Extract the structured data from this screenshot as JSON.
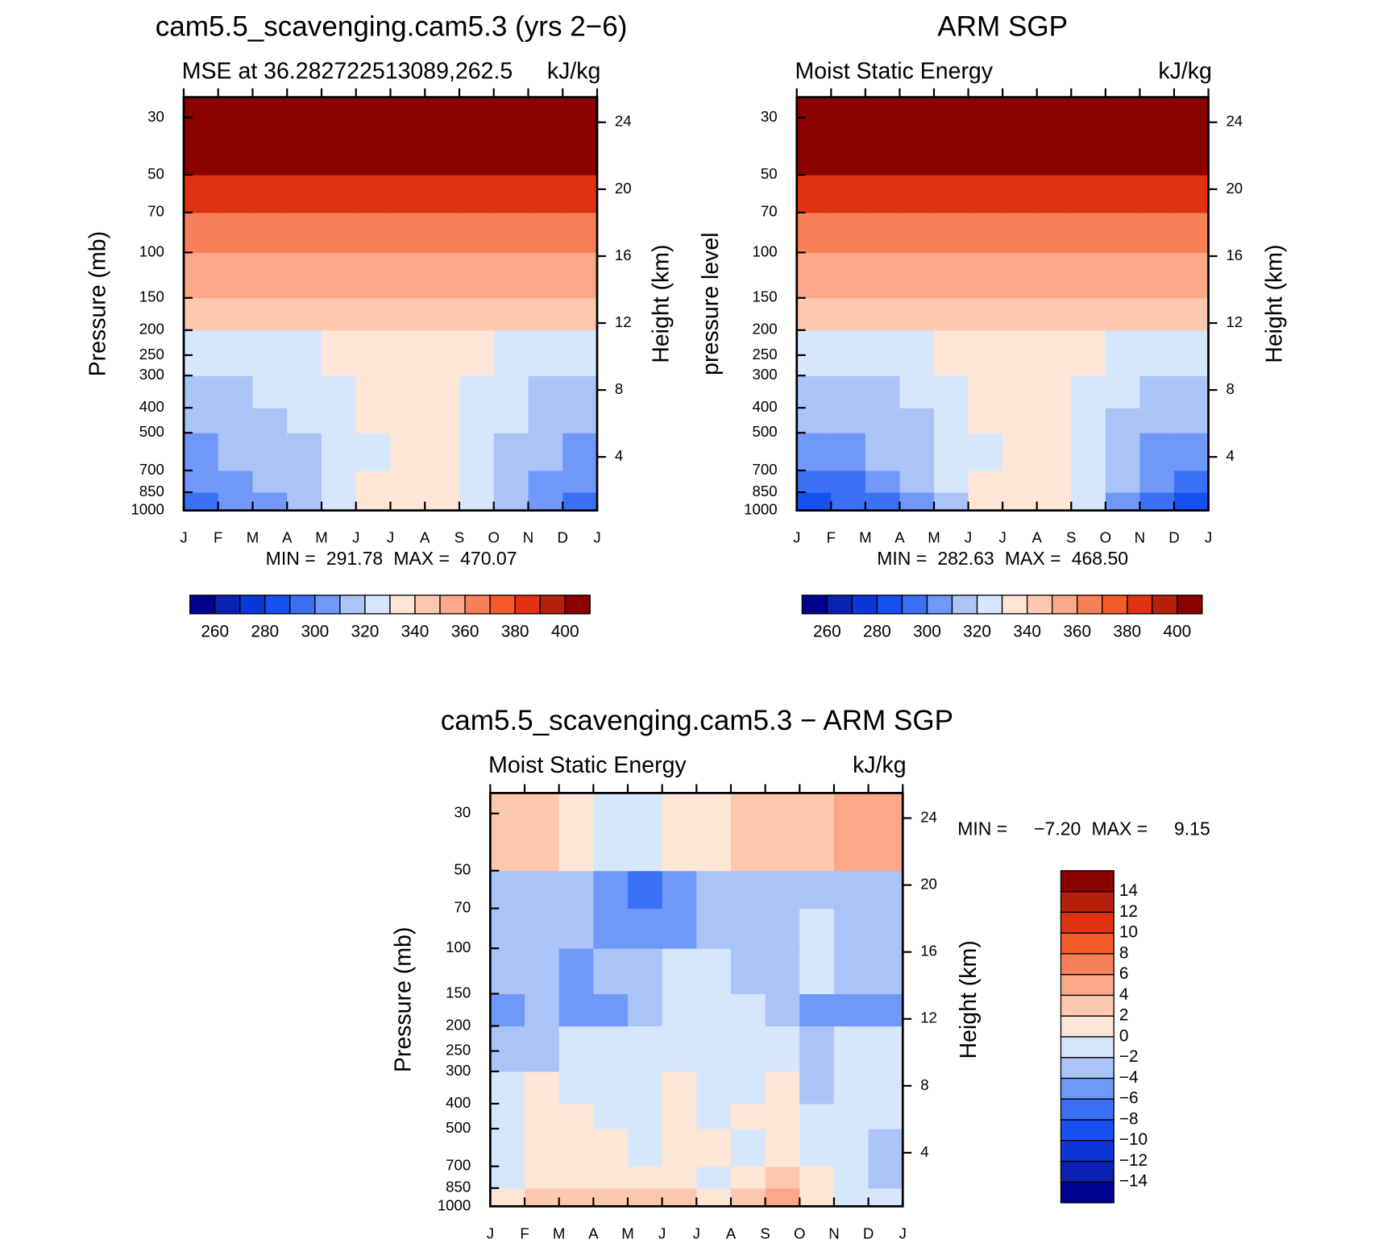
{
  "chart_data": [
    {
      "type": "contour",
      "title": "cam5.5_scavenging.cam5.3 (yrs 2−6)",
      "subtitle_left": "MSE at 36.282722513089,262.5",
      "subtitle_right": "kJ/kg",
      "ylabel": "Pressure (mb)",
      "y2label": "Height (km)",
      "categories": [
        "J",
        "F",
        "M",
        "A",
        "M",
        "J",
        "J",
        "A",
        "S",
        "O",
        "N",
        "D",
        "J"
      ],
      "ylim": [
        1000,
        25
      ],
      "log_y": true,
      "yticks": [
        30,
        50,
        70,
        100,
        150,
        200,
        250,
        300,
        400,
        500,
        700,
        850,
        1000
      ],
      "y2lim": [
        0.8,
        25.5
      ],
      "y2ticks": [
        4,
        8,
        12,
        16,
        20,
        24
      ],
      "pressure_bounds": [
        1000,
        850,
        700,
        500,
        400,
        300,
        200,
        150,
        100,
        70,
        50,
        25
      ],
      "z": [
        [
          296,
          300,
          306,
          315,
          323,
          331,
          336,
          333,
          324,
          312,
          302,
          296
        ],
        [
          302,
          305,
          310,
          316,
          324,
          330,
          334,
          332,
          325,
          314,
          306,
          302
        ],
        [
          308,
          310,
          314,
          318,
          325,
          329,
          331,
          330,
          325,
          316,
          310,
          307
        ],
        [
          314,
          315,
          317,
          320,
          326,
          331,
          332,
          331,
          327,
          320,
          315,
          313
        ],
        [
          318,
          319,
          320,
          323,
          328,
          334,
          335,
          334,
          329,
          323,
          319,
          318
        ],
        [
          326,
          326,
          327,
          329,
          333,
          335,
          336,
          336,
          333,
          329,
          327,
          326
        ],
        [
          342,
          342,
          342,
          342,
          343,
          345,
          346,
          345,
          344,
          342,
          342,
          342
        ],
        [
          352,
          352,
          352,
          352,
          352,
          353,
          353,
          353,
          353,
          352,
          352,
          352
        ],
        [
          366,
          366,
          365,
          365,
          365,
          365,
          365,
          365,
          365,
          365,
          366,
          366
        ],
        [
          385,
          385,
          384,
          384,
          383,
          383,
          383,
          383,
          383,
          384,
          384,
          385
        ],
        [
          430,
          430,
          430,
          430,
          430,
          430,
          430,
          430,
          430,
          430,
          430,
          430
        ]
      ],
      "levels": [
        260,
        270,
        280,
        290,
        300,
        310,
        320,
        330,
        340,
        350,
        360,
        370,
        380,
        390,
        400
      ],
      "colors": [
        "#000090",
        "#0b22b0",
        "#0b36d8",
        "#1650f0",
        "#3a70f5",
        "#7098f8",
        "#aac4f8",
        "#d7e7fb",
        "#fde6d6",
        "#fcc8b0",
        "#fba888",
        "#f88058",
        "#f55a2a",
        "#e03212",
        "#b5200a",
        "#8b0000"
      ],
      "colorbar_ticks": [
        260,
        280,
        300,
        320,
        340,
        360,
        380,
        400
      ],
      "colorbar": "horizontal",
      "min_text": "MIN =",
      "min": 291.78,
      "max_text": "MAX =",
      "max": 470.07
    },
    {
      "type": "contour",
      "title": "ARM SGP",
      "subtitle_left": "Moist Static Energy",
      "subtitle_right": "kJ/kg",
      "ylabel": "pressure level",
      "y2label": "Height (km)",
      "categories": [
        "J",
        "F",
        "M",
        "A",
        "M",
        "J",
        "J",
        "A",
        "S",
        "O",
        "N",
        "D",
        "J"
      ],
      "ylim": [
        1000,
        25
      ],
      "log_y": true,
      "yticks": [
        30,
        50,
        70,
        100,
        150,
        200,
        250,
        300,
        400,
        500,
        700,
        850,
        1000
      ],
      "y2lim": [
        0.8,
        25.5
      ],
      "y2ticks": [
        4,
        8,
        12,
        16,
        20,
        24
      ],
      "pressure_bounds": [
        1000,
        850,
        700,
        500,
        400,
        300,
        200,
        150,
        100,
        70,
        50,
        25
      ],
      "z": [
        [
          288,
          292,
          298,
          308,
          318,
          330,
          337,
          334,
          320,
          305,
          292,
          288
        ],
        [
          296,
          299,
          304,
          313,
          321,
          330,
          333,
          331,
          322,
          310,
          300,
          296
        ],
        [
          304,
          306,
          311,
          316,
          324,
          329,
          331,
          330,
          325,
          315,
          308,
          305
        ],
        [
          312,
          313,
          315,
          319,
          325,
          330,
          332,
          331,
          327,
          319,
          314,
          312
        ],
        [
          317,
          317,
          319,
          322,
          328,
          333,
          335,
          334,
          329,
          322,
          318,
          317
        ],
        [
          325,
          325,
          326,
          328,
          332,
          335,
          337,
          336,
          333,
          328,
          326,
          325
        ],
        [
          341,
          341,
          341,
          342,
          343,
          344,
          345,
          345,
          343,
          342,
          341,
          341
        ],
        [
          353,
          353,
          353,
          353,
          353,
          353,
          353,
          353,
          353,
          353,
          353,
          353
        ],
        [
          368,
          368,
          368,
          368,
          367,
          367,
          367,
          367,
          367,
          368,
          368,
          368
        ],
        [
          385,
          385,
          385,
          384,
          383,
          382,
          382,
          382,
          383,
          384,
          385,
          385
        ],
        [
          430,
          430,
          430,
          430,
          430,
          430,
          430,
          430,
          430,
          430,
          430,
          430
        ]
      ],
      "levels": [
        260,
        270,
        280,
        290,
        300,
        310,
        320,
        330,
        340,
        350,
        360,
        370,
        380,
        390,
        400
      ],
      "colors": [
        "#000090",
        "#0b22b0",
        "#0b36d8",
        "#1650f0",
        "#3a70f5",
        "#7098f8",
        "#aac4f8",
        "#d7e7fb",
        "#fde6d6",
        "#fcc8b0",
        "#fba888",
        "#f88058",
        "#f55a2a",
        "#e03212",
        "#b5200a",
        "#8b0000"
      ],
      "colorbar_ticks": [
        260,
        280,
        300,
        320,
        340,
        360,
        380,
        400
      ],
      "colorbar": "horizontal",
      "min_text": "MIN =",
      "min": 282.63,
      "max_text": "MAX =",
      "max": {
        "value": 468.5,
        "label": "468.50"
      }
    },
    {
      "type": "contour",
      "title": "cam5.5_scavenging.cam5.3 − ARM SGP",
      "subtitle_left": "Moist Static Energy",
      "subtitle_right": "kJ/kg",
      "ylabel": "Pressure (mb)",
      "y2label": "Height (km)",
      "categories": [
        "J",
        "F",
        "M",
        "A",
        "M",
        "J",
        "J",
        "A",
        "S",
        "O",
        "N",
        "D",
        "J"
      ],
      "ylim": [
        1000,
        25
      ],
      "log_y": true,
      "yticks": [
        30,
        50,
        70,
        100,
        150,
        200,
        250,
        300,
        400,
        500,
        700,
        850,
        1000
      ],
      "y2lim": [
        0.8,
        25.5
      ],
      "y2ticks": [
        4,
        8,
        12,
        16,
        20,
        24
      ],
      "pressure_bounds": [
        1000,
        850,
        700,
        500,
        400,
        300,
        200,
        150,
        100,
        70,
        50,
        25
      ],
      "z": [
        [
          1,
          2,
          3,
          2,
          3,
          2,
          0,
          2,
          4,
          1,
          -1,
          -2
        ],
        [
          -1,
          1,
          1,
          1,
          1,
          1,
          -1,
          1,
          2,
          0,
          -1,
          -3
        ],
        [
          -1,
          1,
          1,
          1,
          -1,
          1,
          1,
          -1,
          1,
          -1,
          -1,
          -3
        ],
        [
          -1,
          1,
          1,
          -1,
          -1,
          1,
          -1,
          1,
          1,
          -1,
          -1,
          -1
        ],
        [
          -1,
          1,
          -1,
          -1,
          -1,
          1,
          -1,
          -1,
          1,
          -3,
          -1,
          -1
        ],
        [
          -3,
          -3,
          -1,
          -1,
          -1,
          -1,
          -1,
          -1,
          -1,
          -3,
          -1,
          -1
        ],
        [
          -5,
          -3,
          -5,
          -5,
          -3,
          -1,
          -1,
          -1,
          -3,
          -5,
          -5,
          -5
        ],
        [
          -3,
          -3,
          -5,
          -3,
          -3,
          -1,
          -1,
          -3,
          -3,
          -1,
          -3,
          -3
        ],
        [
          -3,
          -3,
          -3,
          -5,
          -5,
          -5,
          -3,
          -3,
          -3,
          -1,
          -3,
          -3
        ],
        [
          -3,
          -3,
          -3,
          -5,
          -7,
          -5,
          -3,
          -3,
          -3,
          -3,
          -3,
          -3
        ],
        [
          3,
          3,
          1,
          -1,
          -1,
          1,
          1,
          3,
          3,
          3,
          4,
          5
        ]
      ],
      "levels": [
        -14,
        -12,
        -10,
        -8,
        -6,
        -4,
        -2,
        0,
        2,
        4,
        6,
        8,
        10,
        12,
        14
      ],
      "colors": [
        "#000090",
        "#0b22b0",
        "#0b36d8",
        "#1650f0",
        "#3a70f5",
        "#7098f8",
        "#aac4f8",
        "#d7e7fb",
        "#fde6d6",
        "#fcc8b0",
        "#fba888",
        "#f88058",
        "#f55a2a",
        "#e03212",
        "#b5200a",
        "#8b0000"
      ],
      "colorbar_ticks": [
        {
          "value": -14,
          "label": "−14"
        },
        {
          "value": -12,
          "label": "−12"
        },
        {
          "value": -10,
          "label": "−10"
        },
        {
          "value": -8,
          "label": "−8"
        },
        {
          "value": -6,
          "label": "−6"
        },
        {
          "value": -4,
          "label": "−4"
        },
        {
          "value": -2,
          "label": "−2"
        },
        0,
        2,
        4,
        6,
        8,
        10,
        12,
        14
      ],
      "colorbar": "vertical",
      "min_text": "MIN =",
      "min": {
        "value": -7.2,
        "label": "−7.20"
      },
      "max_text": "MAX =",
      "max": 9.15
    }
  ]
}
